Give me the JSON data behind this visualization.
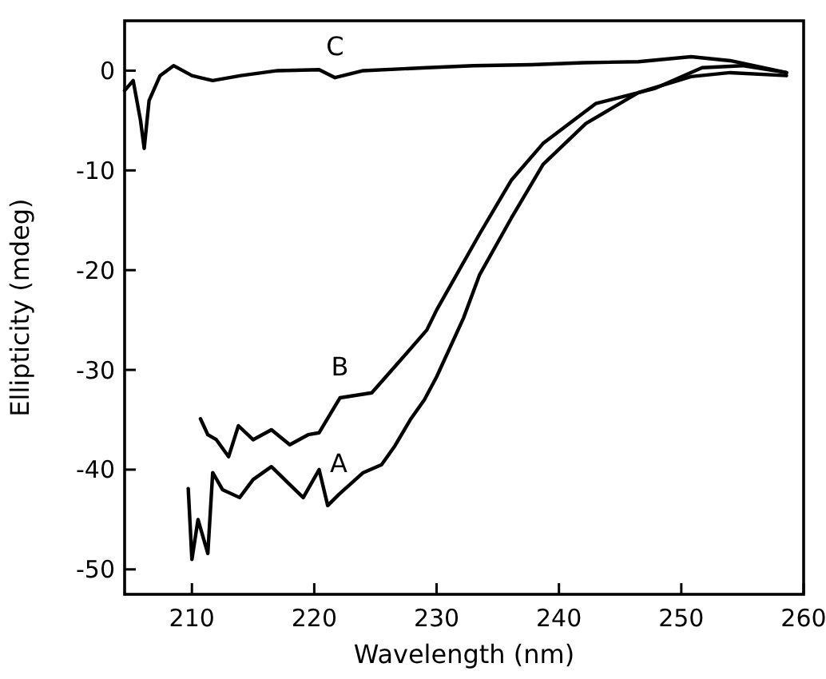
{
  "chart_data": {
    "type": "line",
    "xlabel": "Wavelength (nm)",
    "ylabel": "Ellipticity (mdeg)",
    "xlim": [
      204.5,
      260
    ],
    "ylim": [
      -52.5,
      5
    ],
    "xticks": [
      210,
      220,
      230,
      240,
      250,
      260
    ],
    "yticks": [
      0,
      -10,
      -20,
      -30,
      -40,
      -50
    ],
    "grid": false,
    "marker": "none",
    "line_style": "solid",
    "series": [
      {
        "name": "A",
        "color": "#000000",
        "x": [
          209.7,
          210,
          210.5,
          211.3,
          211.7,
          212.5,
          213.9,
          215,
          216.5,
          218,
          219.1,
          220.4,
          221.1,
          222,
          224,
          225.5,
          226.6,
          227.9,
          229,
          230,
          232.2,
          233.5,
          236.1,
          238.7,
          242.2,
          246.5,
          250.8,
          254,
          258.6
        ],
        "values": [
          -41.9,
          -49,
          -45,
          -48.4,
          -40.3,
          -42,
          -42.8,
          -41,
          -39.7,
          -41.5,
          -42.8,
          -40,
          -43.6,
          -42.5,
          -40.3,
          -39.5,
          -37.6,
          -34.9,
          -33,
          -30.7,
          -24.8,
          -20.5,
          -14.8,
          -9.4,
          -5.3,
          -2.2,
          -0.6,
          -0.2,
          -0.5
        ]
      },
      {
        "name": "B",
        "color": "#000000",
        "x": [
          210.7,
          211.3,
          212,
          213,
          213.8,
          215,
          216.5,
          218,
          219.5,
          220.4,
          222.1,
          224.7,
          227,
          229.2,
          230,
          233.5,
          236.1,
          238.7,
          243,
          247.8,
          251.7,
          255,
          258.6
        ],
        "values": [
          -34.9,
          -36.5,
          -37,
          -38.7,
          -35.6,
          -37,
          -36,
          -37.5,
          -36.5,
          -36.3,
          -32.8,
          -32.3,
          -29.1,
          -26,
          -24,
          -16.4,
          -11,
          -7.3,
          -3.3,
          -1.8,
          0.3,
          0.5,
          -0.2
        ]
      },
      {
        "name": "C",
        "color": "#000000",
        "x": [
          204.5,
          205.2,
          205.8,
          206.1,
          206.5,
          207.4,
          208.5,
          210,
          211.7,
          214,
          217,
          220.4,
          221.7,
          224,
          229.2,
          233,
          237.8,
          242,
          246.5,
          250.8,
          254,
          258.6
        ],
        "values": [
          -2,
          -1,
          -5,
          -7.8,
          -3,
          -0.5,
          0.5,
          -0.5,
          -1,
          -0.5,
          0,
          0.1,
          -0.7,
          0,
          0.3,
          0.5,
          0.6,
          0.8,
          0.9,
          1.4,
          1,
          -0.2
        ]
      }
    ]
  }
}
